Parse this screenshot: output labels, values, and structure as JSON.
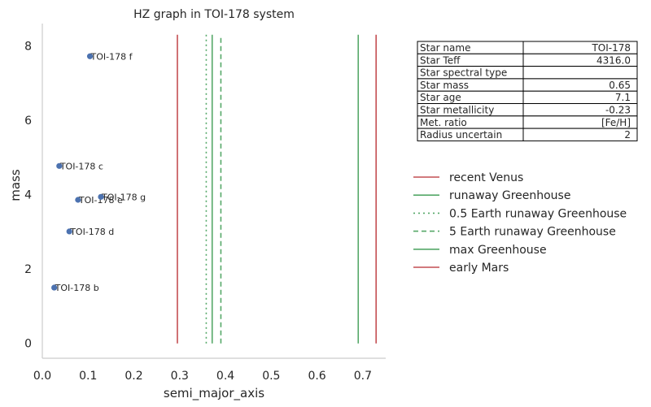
{
  "chart_data": {
    "type": "scatter",
    "title": "HZ graph in TOI-178 system",
    "xlabel": "semi_major_axis",
    "ylabel": "mass",
    "xlim": [
      0.0,
      0.75
    ],
    "ylim": [
      -0.4,
      8.6
    ],
    "xticks": [
      "0.0",
      "0.1",
      "0.2",
      "0.3",
      "0.4",
      "0.5",
      "0.6",
      "0.7"
    ],
    "yticks": [
      "0",
      "2",
      "4",
      "6",
      "8"
    ],
    "grid": false,
    "point_color": "#4c72b0",
    "points": [
      {
        "name": "TOI-178 b",
        "x": 0.026,
        "y": 1.5
      },
      {
        "name": "TOI-178 c",
        "x": 0.037,
        "y": 4.77
      },
      {
        "name": "TOI-178 d",
        "x": 0.059,
        "y": 3.01
      },
      {
        "name": "TOI-178 e",
        "x": 0.078,
        "y": 3.86
      },
      {
        "name": "TOI-178 f",
        "x": 0.104,
        "y": 7.72
      },
      {
        "name": "TOI-178 g",
        "x": 0.128,
        "y": 3.94
      }
    ],
    "vlines": [
      {
        "name": "recent Venus",
        "x": 0.295,
        "color": "#c44e52",
        "style": "solid"
      },
      {
        "name": "runaway Greenhouse",
        "x": 0.371,
        "color": "#55a868",
        "style": "solid"
      },
      {
        "name": "0.5 Earth runaway Greenhouse",
        "x": 0.358,
        "color": "#55a868",
        "style": "dotted"
      },
      {
        "name": "5 Earth runaway Greenhouse",
        "x": 0.39,
        "color": "#55a868",
        "style": "dashed"
      },
      {
        "name": "max Greenhouse",
        "x": 0.69,
        "color": "#55a868",
        "style": "solid"
      },
      {
        "name": "early Mars",
        "x": 0.729,
        "color": "#c44e52",
        "style": "solid"
      }
    ],
    "vline_ymax": 8.3,
    "legend_position": "right",
    "table": [
      [
        "Star name",
        "TOI-178"
      ],
      [
        "Star Teff",
        "4316.0"
      ],
      [
        "Star spectral type",
        ""
      ],
      [
        "Star mass",
        "0.65"
      ],
      [
        "Star age",
        "7.1"
      ],
      [
        "Star metallicity",
        "-0.23"
      ],
      [
        "Met. ratio",
        "[Fe/H]"
      ],
      [
        "Radius uncertain",
        "2"
      ]
    ]
  }
}
